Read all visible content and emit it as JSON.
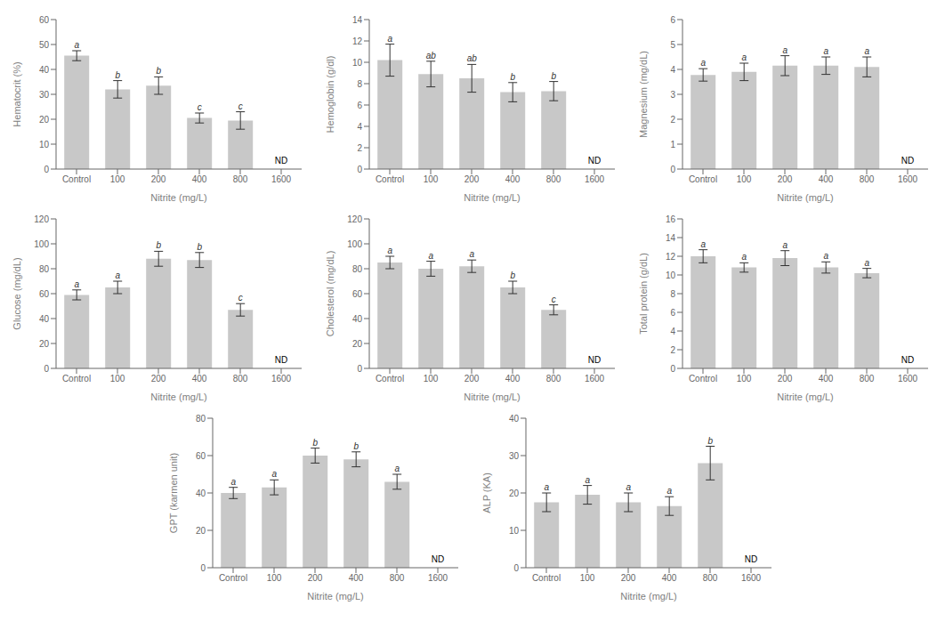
{
  "chart_data": [
    {
      "type": "bar",
      "xlabel": "Nitrite (mg/L)",
      "ylabel": "Hematocrit (%)",
      "categories": [
        "Control",
        "100",
        "200",
        "400",
        "800",
        "1600"
      ],
      "values": [
        45.5,
        32.0,
        33.5,
        20.5,
        19.5,
        null
      ],
      "errors": [
        2.0,
        3.5,
        3.5,
        2.0,
        3.5,
        null
      ],
      "letters": [
        "a",
        "b",
        "b",
        "c",
        "c",
        null
      ],
      "nd_label": "ND",
      "ylim": [
        0,
        60
      ],
      "yticks": [
        0,
        10,
        20,
        30,
        40,
        50,
        60
      ],
      "color": "#c8c8c8",
      "grid": false
    },
    {
      "type": "bar",
      "xlabel": "Nitrite (mg/L)",
      "ylabel": "Hemoglobin (g/dl)",
      "categories": [
        "Control",
        "100",
        "200",
        "400",
        "800",
        "1600"
      ],
      "values": [
        10.2,
        8.9,
        8.5,
        7.2,
        7.3,
        null
      ],
      "errors": [
        1.5,
        1.2,
        1.3,
        0.9,
        0.9,
        null
      ],
      "letters": [
        "a",
        "ab",
        "ab",
        "b",
        "b",
        null
      ],
      "nd_label": "ND",
      "ylim": [
        0,
        14
      ],
      "yticks": [
        0,
        2,
        4,
        6,
        8,
        10,
        12,
        14
      ],
      "color": "#c8c8c8",
      "grid": false
    },
    {
      "type": "bar",
      "xlabel": "Nitrite (mg/L)",
      "ylabel": "Magnesium (mg/dL)",
      "categories": [
        "Control",
        "100",
        "200",
        "400",
        "800",
        "1600"
      ],
      "values": [
        3.78,
        3.9,
        4.15,
        4.15,
        4.1,
        null
      ],
      "errors": [
        0.25,
        0.35,
        0.4,
        0.35,
        0.4,
        null
      ],
      "letters": [
        "a",
        "a",
        "a",
        "a",
        "a",
        null
      ],
      "nd_label": "ND",
      "ylim": [
        0,
        6
      ],
      "yticks": [
        0,
        1,
        2,
        3,
        4,
        5,
        6
      ],
      "color": "#c8c8c8",
      "grid": false
    },
    {
      "type": "bar",
      "xlabel": "Nitrite (mg/L)",
      "ylabel": "Glucose (mg/dL)",
      "categories": [
        "Control",
        "100",
        "200",
        "400",
        "800",
        "1600"
      ],
      "values": [
        59.0,
        65.0,
        88.0,
        87.0,
        47.0,
        null
      ],
      "errors": [
        4.0,
        5.0,
        6.0,
        6.0,
        5.0,
        null
      ],
      "letters": [
        "a",
        "a",
        "b",
        "b",
        "c",
        null
      ],
      "nd_label": "ND",
      "ylim": [
        0,
        120
      ],
      "yticks": [
        0,
        20,
        40,
        60,
        80,
        100,
        120
      ],
      "color": "#c8c8c8",
      "grid": false
    },
    {
      "type": "bar",
      "xlabel": "Nitrite (mg/L)",
      "ylabel": "Cholesterol (mg/dL)",
      "categories": [
        "Control",
        "100",
        "200",
        "400",
        "800",
        "1600"
      ],
      "values": [
        85.0,
        80.0,
        82.0,
        65.0,
        47.0,
        null
      ],
      "errors": [
        5.0,
        6.0,
        5.0,
        5.0,
        4.0,
        null
      ],
      "letters": [
        "a",
        "a",
        "a",
        "b",
        "c",
        null
      ],
      "nd_label": "ND",
      "ylim": [
        0,
        120
      ],
      "yticks": [
        0,
        20,
        40,
        60,
        80,
        100,
        120
      ],
      "color": "#c8c8c8",
      "grid": false
    },
    {
      "type": "bar",
      "xlabel": "Nitrite (mg/L)",
      "ylabel": "Total protein (g/dL)",
      "categories": [
        "Control",
        "100",
        "200",
        "400",
        "800",
        "1600"
      ],
      "values": [
        12.0,
        10.8,
        11.8,
        10.8,
        10.2,
        null
      ],
      "errors": [
        0.7,
        0.5,
        0.8,
        0.6,
        0.5,
        null
      ],
      "letters": [
        "a",
        "a",
        "a",
        "a",
        "a",
        null
      ],
      "nd_label": "ND",
      "ylim": [
        0,
        16
      ],
      "yticks": [
        0,
        2,
        4,
        6,
        8,
        10,
        12,
        14,
        16
      ],
      "color": "#c8c8c8",
      "grid": false
    },
    {
      "type": "bar",
      "xlabel": "Nitrite (mg/L)",
      "ylabel": "GPT (karmen unit)",
      "categories": [
        "Control",
        "100",
        "200",
        "400",
        "800",
        "1600"
      ],
      "values": [
        40.0,
        43.0,
        60.0,
        58.0,
        46.0,
        null
      ],
      "errors": [
        3.0,
        4.0,
        4.0,
        4.0,
        4.0,
        null
      ],
      "letters": [
        "a",
        "a",
        "b",
        "b",
        "a",
        null
      ],
      "nd_label": "ND",
      "ylim": [
        0,
        80
      ],
      "yticks": [
        0,
        20,
        40,
        60,
        80
      ],
      "color": "#c8c8c8",
      "grid": false
    },
    {
      "type": "bar",
      "xlabel": "Nitrite (mg/L)",
      "ylabel": "ALP (KA)",
      "categories": [
        "Control",
        "100",
        "200",
        "400",
        "800",
        "1600"
      ],
      "values": [
        17.5,
        19.5,
        17.5,
        16.5,
        28.0,
        null
      ],
      "errors": [
        2.5,
        2.5,
        2.5,
        2.5,
        4.5,
        null
      ],
      "letters": [
        "a",
        "a",
        "a",
        "a",
        "b",
        null
      ],
      "nd_label": "ND",
      "ylim": [
        0,
        40
      ],
      "yticks": [
        0,
        10,
        20,
        30,
        40
      ],
      "color": "#c8c8c8",
      "grid": false
    }
  ]
}
